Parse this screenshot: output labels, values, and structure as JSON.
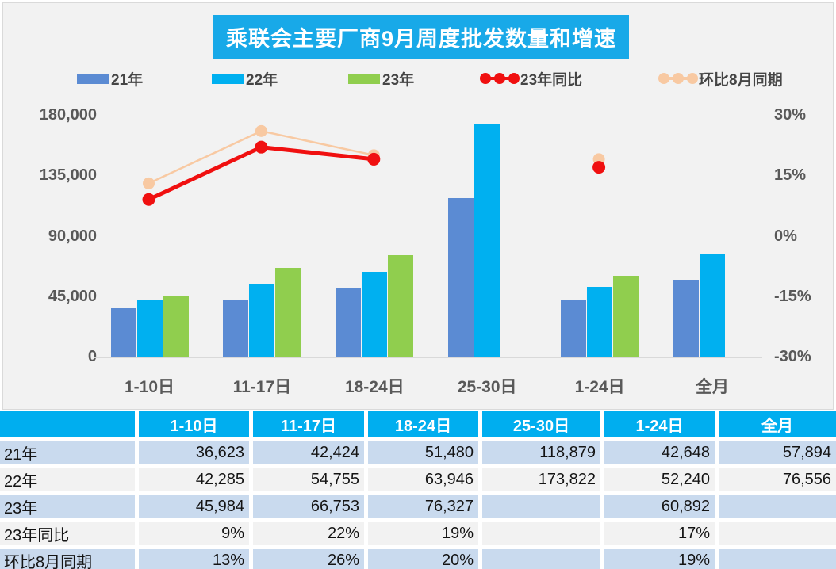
{
  "colors": {
    "title_bg": "#18A9E8",
    "header_bg": "#00AEEF",
    "panel_bg": "#F2F2F2",
    "stripe_blue": "#C9DAEE",
    "stripe_gray": "#F2F2F2",
    "axis_text": "#595959",
    "baseline": "#D9D9D9"
  },
  "chart_data": {
    "type": "bar+line",
    "title": "乘联会主要厂商9月周度批发数量和增速",
    "categories": [
      "1-10日",
      "11-17日",
      "18-24日",
      "25-30日",
      "1-24日",
      "全月"
    ],
    "bar_series": [
      {
        "name": "21年",
        "color": "#5B8BD3",
        "values": [
          36623,
          42424,
          51480,
          118879,
          42648,
          57894
        ]
      },
      {
        "name": "22年",
        "color": "#00B0F0",
        "values": [
          42285,
          54755,
          63946,
          173822,
          52240,
          76556
        ]
      },
      {
        "name": "23年",
        "color": "#90CE4E",
        "values": [
          45984,
          66753,
          76327,
          null,
          60892,
          null
        ]
      }
    ],
    "line_series": [
      {
        "name": "23年同比",
        "color": "#F01010",
        "width": 5,
        "dot_r": 8,
        "values_pct": [
          9,
          22,
          19,
          null,
          17,
          null
        ]
      },
      {
        "name": "环比8月同期",
        "color": "#F8C9A2",
        "width": 2.5,
        "dot_r": 7.5,
        "values_pct": [
          13,
          26,
          20,
          null,
          19,
          null
        ]
      }
    ],
    "left_axis": {
      "min": 0,
      "max": 180000,
      "ticks": [
        "0",
        "45,000",
        "90,000",
        "135,000",
        "180,000"
      ]
    },
    "right_axis": {
      "min": -30,
      "max": 30,
      "ticks": [
        "-30%",
        "-15%",
        "0%",
        "15%",
        "30%"
      ]
    },
    "grid": false,
    "legend_position": "top"
  },
  "table": {
    "columns": [
      "",
      "1-10日",
      "11-17日",
      "18-24日",
      "25-30日",
      "1-24日",
      "全月"
    ],
    "rows": [
      {
        "label": "21年",
        "cells": [
          "36,623",
          "42,424",
          "51,480",
          "118,879",
          "42,648",
          "57,894"
        ]
      },
      {
        "label": "22年",
        "cells": [
          "42,285",
          "54,755",
          "63,946",
          "173,822",
          "52,240",
          "76,556"
        ]
      },
      {
        "label": "23年",
        "cells": [
          "45,984",
          "66,753",
          "76,327",
          "",
          "60,892",
          ""
        ]
      },
      {
        "label": "23年同比",
        "cells": [
          "9%",
          "22%",
          "19%",
          "",
          "17%",
          ""
        ]
      },
      {
        "label": "环比8月同期",
        "cells": [
          "13%",
          "26%",
          "20%",
          "",
          "19%",
          ""
        ]
      }
    ]
  }
}
